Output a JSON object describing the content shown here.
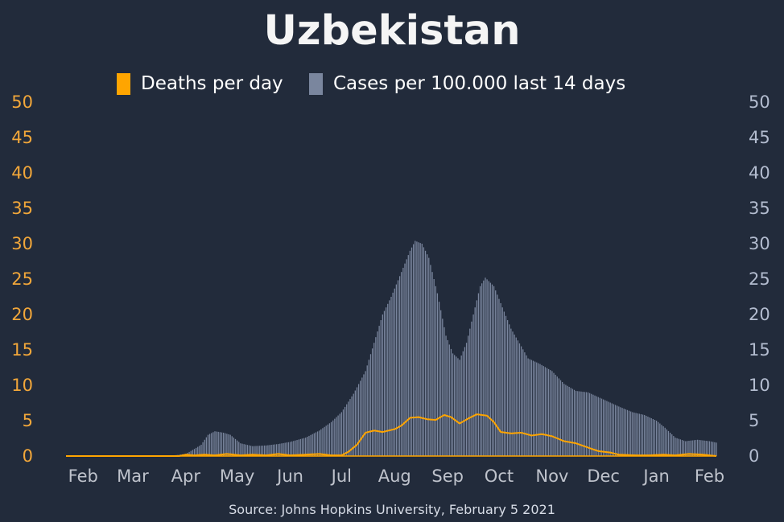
{
  "chart_data": {
    "type": "bar",
    "title": "Uzbekistan",
    "source": "Source: Johns Hopkins University, February 5 2021",
    "legend": [
      {
        "label": "Deaths per day",
        "color": "#ffa500"
      },
      {
        "label": "Cases per 100.000 last 14 days",
        "color": "#7a869e"
      }
    ],
    "legend_position": "top",
    "ylim": [
      0,
      50
    ],
    "y_ticks": [
      "0",
      "5",
      "10",
      "15",
      "20",
      "25",
      "30",
      "35",
      "40",
      "45",
      "50"
    ],
    "x_ticks": [
      "Feb",
      "Mar",
      "Apr",
      "May",
      "Jun",
      "Jul",
      "Aug",
      "Sep",
      "Oct",
      "Nov",
      "Dec",
      "Jan",
      "Feb"
    ],
    "x_range": [
      "2020-01-22",
      "2021-02-05"
    ],
    "x_tick_dates": [
      "2020-02-01",
      "2020-03-01",
      "2020-04-01",
      "2020-05-01",
      "2020-06-01",
      "2020-07-01",
      "2020-08-01",
      "2020-09-01",
      "2020-10-01",
      "2020-11-01",
      "2020-12-01",
      "2021-01-01",
      "2021-02-01"
    ],
    "grid": false,
    "colors": {
      "background": "#222b3b",
      "left_axis": "#f2a73a",
      "right_axis": "#b3bccf",
      "bars": "#7a869e",
      "deaths": "#ffa500"
    },
    "series": [
      {
        "name": "Cases per 100.000 last 14 days",
        "type": "bar",
        "axis": "right",
        "points": [
          [
            "2020-01-22",
            0
          ],
          [
            "2020-03-14",
            0
          ],
          [
            "2020-03-25",
            0.1
          ],
          [
            "2020-04-01",
            0.3
          ],
          [
            "2020-04-06",
            1.0
          ],
          [
            "2020-04-10",
            1.6
          ],
          [
            "2020-04-14",
            3.0
          ],
          [
            "2020-04-18",
            3.5
          ],
          [
            "2020-04-23",
            3.3
          ],
          [
            "2020-04-27",
            3.0
          ],
          [
            "2020-05-03",
            1.8
          ],
          [
            "2020-05-10",
            1.4
          ],
          [
            "2020-05-18",
            1.5
          ],
          [
            "2020-05-25",
            1.7
          ],
          [
            "2020-06-01",
            2.0
          ],
          [
            "2020-06-10",
            2.6
          ],
          [
            "2020-06-18",
            3.6
          ],
          [
            "2020-06-25",
            4.8
          ],
          [
            "2020-07-01",
            6.2
          ],
          [
            "2020-07-08",
            8.8
          ],
          [
            "2020-07-15",
            12.0
          ],
          [
            "2020-07-20",
            16.0
          ],
          [
            "2020-07-25",
            20.0
          ],
          [
            "2020-07-30",
            22.5
          ],
          [
            "2020-08-05",
            26.0
          ],
          [
            "2020-08-10",
            29.0
          ],
          [
            "2020-08-13",
            30.4
          ],
          [
            "2020-08-17",
            30.0
          ],
          [
            "2020-08-21",
            28.0
          ],
          [
            "2020-08-26",
            23.0
          ],
          [
            "2020-08-31",
            17.0
          ],
          [
            "2020-09-04",
            14.5
          ],
          [
            "2020-09-08",
            13.6
          ],
          [
            "2020-09-12",
            16.0
          ],
          [
            "2020-09-16",
            20.0
          ],
          [
            "2020-09-20",
            24.0
          ],
          [
            "2020-09-23",
            25.2
          ],
          [
            "2020-09-28",
            24.0
          ],
          [
            "2020-10-03",
            21.0
          ],
          [
            "2020-10-08",
            18.0
          ],
          [
            "2020-10-14",
            15.5
          ],
          [
            "2020-10-18",
            13.8
          ],
          [
            "2020-10-25",
            13.0
          ],
          [
            "2020-11-01",
            12.0
          ],
          [
            "2020-11-08",
            10.2
          ],
          [
            "2020-11-15",
            9.2
          ],
          [
            "2020-11-22",
            9.0
          ],
          [
            "2020-12-01",
            8.0
          ],
          [
            "2020-12-10",
            7.0
          ],
          [
            "2020-12-18",
            6.2
          ],
          [
            "2020-12-25",
            5.8
          ],
          [
            "2021-01-01",
            5.0
          ],
          [
            "2021-01-06",
            4.0
          ],
          [
            "2021-01-12",
            2.6
          ],
          [
            "2021-01-18",
            2.1
          ],
          [
            "2021-01-25",
            2.3
          ],
          [
            "2021-02-01",
            2.1
          ],
          [
            "2021-02-05",
            1.9
          ]
        ]
      },
      {
        "name": "Deaths per day",
        "type": "line",
        "axis": "left",
        "points": [
          [
            "2020-01-22",
            0
          ],
          [
            "2020-03-28",
            0
          ],
          [
            "2020-04-01",
            0.2
          ],
          [
            "2020-04-06",
            0.1
          ],
          [
            "2020-04-12",
            0.2
          ],
          [
            "2020-04-18",
            0.1
          ],
          [
            "2020-04-25",
            0.3
          ],
          [
            "2020-05-03",
            0.1
          ],
          [
            "2020-05-10",
            0.2
          ],
          [
            "2020-05-18",
            0.1
          ],
          [
            "2020-05-25",
            0.3
          ],
          [
            "2020-06-01",
            0.1
          ],
          [
            "2020-06-10",
            0.2
          ],
          [
            "2020-06-18",
            0.3
          ],
          [
            "2020-06-25",
            0.1
          ],
          [
            "2020-07-01",
            0.1
          ],
          [
            "2020-07-05",
            0.6
          ],
          [
            "2020-07-10",
            1.6
          ],
          [
            "2020-07-15",
            3.3
          ],
          [
            "2020-07-20",
            3.6
          ],
          [
            "2020-07-25",
            3.4
          ],
          [
            "2020-08-01",
            3.8
          ],
          [
            "2020-08-05",
            4.3
          ],
          [
            "2020-08-10",
            5.4
          ],
          [
            "2020-08-15",
            5.5
          ],
          [
            "2020-08-20",
            5.2
          ],
          [
            "2020-08-25",
            5.1
          ],
          [
            "2020-08-30",
            5.8
          ],
          [
            "2020-09-03",
            5.5
          ],
          [
            "2020-09-08",
            4.6
          ],
          [
            "2020-09-13",
            5.3
          ],
          [
            "2020-09-18",
            5.9
          ],
          [
            "2020-09-24",
            5.7
          ],
          [
            "2020-09-28",
            4.8
          ],
          [
            "2020-10-02",
            3.4
          ],
          [
            "2020-10-08",
            3.2
          ],
          [
            "2020-10-14",
            3.3
          ],
          [
            "2020-10-20",
            2.9
          ],
          [
            "2020-10-26",
            3.1
          ],
          [
            "2020-11-01",
            2.8
          ],
          [
            "2020-11-08",
            2.1
          ],
          [
            "2020-11-15",
            1.8
          ],
          [
            "2020-11-22",
            1.2
          ],
          [
            "2020-11-28",
            0.7
          ],
          [
            "2020-12-05",
            0.5
          ],
          [
            "2020-12-10",
            0.2
          ],
          [
            "2020-12-20",
            0.1
          ],
          [
            "2020-12-28",
            0.1
          ],
          [
            "2021-01-05",
            0.2
          ],
          [
            "2021-01-12",
            0.1
          ],
          [
            "2021-01-20",
            0.3
          ],
          [
            "2021-01-28",
            0.2
          ],
          [
            "2021-02-05",
            0
          ]
        ]
      }
    ]
  }
}
